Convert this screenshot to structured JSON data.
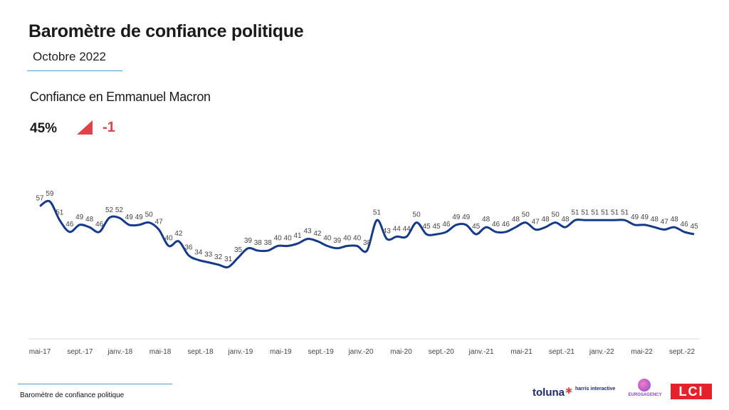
{
  "header": {
    "title": "Baromètre de confiance politique",
    "subtitle": "Octobre 2022"
  },
  "series_title": "Confiance en Emmanuel Macron",
  "kpi": {
    "value": "45%",
    "delta": "-1",
    "trend_icon": "down-triangle-icon",
    "delta_color": "#e0424a"
  },
  "footer": {
    "text": "Baromètre de confiance politique",
    "logos": {
      "toluna": "toluna",
      "harris": "harris interactive",
      "euros": "EUROSAGENCY",
      "lci": "LCI"
    }
  },
  "colors": {
    "line": "#163a8a",
    "accent_rule": "#4aa3c8"
  },
  "chart_data": {
    "type": "line",
    "title": "Confiance en Emmanuel Macron",
    "ylim": [
      0,
      100
    ],
    "grid": false,
    "x_tick_labels": [
      "mai-17",
      "sept.-17",
      "janv.-18",
      "mai-18",
      "sept.-18",
      "janv.-19",
      "mai-19",
      "sept.-19",
      "janv.-20",
      "mai-20",
      "sept.-20",
      "janv.-21",
      "mai-21",
      "sept.-21",
      "janv.-22",
      "mai-22",
      "sept.-22"
    ],
    "series": [
      {
        "values": [
          57,
          59,
          51,
          46,
          49,
          48,
          46,
          52,
          52,
          49,
          49,
          50,
          47,
          40,
          42,
          36,
          34,
          33,
          32,
          31,
          35,
          39,
          38,
          38,
          40,
          40,
          41,
          43,
          42,
          40,
          39,
          40,
          40,
          38,
          51,
          43,
          44,
          44,
          50,
          45,
          45,
          46,
          49,
          49,
          45,
          48,
          46,
          46,
          48,
          50,
          47,
          48,
          50,
          48,
          51,
          51,
          51,
          51,
          51,
          51,
          49,
          49,
          48,
          47,
          48,
          46,
          45
        ]
      }
    ]
  }
}
